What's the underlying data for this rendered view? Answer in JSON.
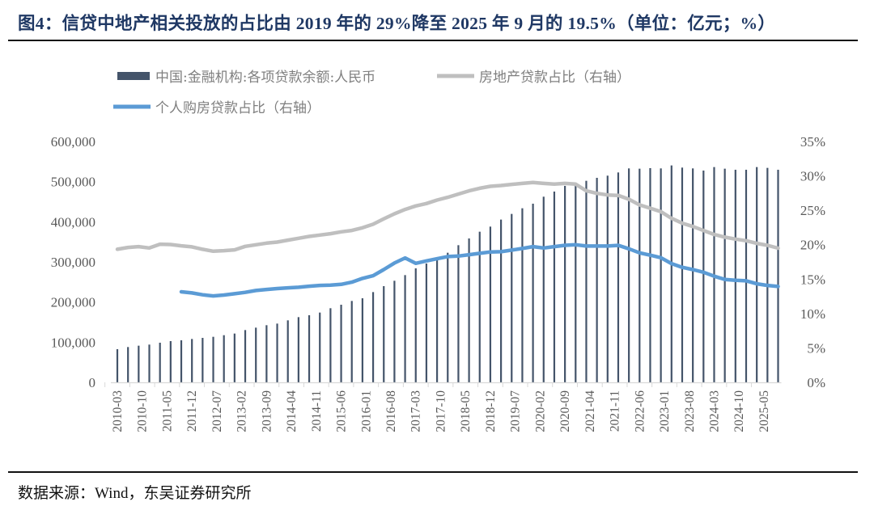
{
  "title": "图4：信贷中地产相关投放的占比由 2019 年的 29%降至 2025 年 9 月的 19.5%（单位：亿元；%）",
  "source": "数据来源：Wind，东吴证券研究所",
  "chart_data": {
    "type": "bar+line",
    "legend_placement": "top",
    "colors": {
      "bars": "#44546a",
      "real_estate_line": "#bfbfbf",
      "housing_line": "#5b9bd5"
    },
    "y_left": {
      "range": [
        0,
        600000
      ],
      "ticks": [
        "0",
        "100,000",
        "200,000",
        "300,000",
        "400,000",
        "500,000",
        "600,000"
      ]
    },
    "y_right": {
      "range": [
        0,
        35
      ],
      "ticks": [
        "0%",
        "5%",
        "10%",
        "15%",
        "20%",
        "25%",
        "30%",
        "35%"
      ]
    },
    "x_tick_labels": [
      "2010-03",
      "2010-10",
      "2011-05",
      "2011-12",
      "2012-07",
      "2013-02",
      "2013-09",
      "2014-04",
      "2014-11",
      "2015-06",
      "2016-01",
      "2016-08",
      "2017-03",
      "2017-10",
      "2018-05",
      "2018-12",
      "2019-07",
      "2020-02",
      "2020-09",
      "2021-04",
      "2021-11",
      "2022-06",
      "2023-01",
      "2023-08",
      "2024-03",
      "2024-10",
      "2025-05"
    ],
    "x": [
      "2010-03",
      "2010-06",
      "2010-09",
      "2010-12",
      "2011-03",
      "2011-06",
      "2011-09",
      "2011-12",
      "2012-03",
      "2012-06",
      "2012-09",
      "2012-12",
      "2013-03",
      "2013-06",
      "2013-09",
      "2013-12",
      "2014-03",
      "2014-06",
      "2014-09",
      "2014-12",
      "2015-03",
      "2015-06",
      "2015-09",
      "2015-12",
      "2016-03",
      "2016-06",
      "2016-09",
      "2016-12",
      "2017-03",
      "2017-06",
      "2017-09",
      "2017-12",
      "2018-03",
      "2018-06",
      "2018-09",
      "2018-12",
      "2019-03",
      "2019-06",
      "2019-09",
      "2019-12",
      "2020-03",
      "2020-06",
      "2020-09",
      "2020-12",
      "2021-03",
      "2021-06",
      "2021-09",
      "2021-12",
      "2022-03",
      "2022-06",
      "2022-09",
      "2022-12",
      "2023-03",
      "2023-06",
      "2023-09",
      "2023-12",
      "2024-03",
      "2024-06",
      "2024-09",
      "2024-12",
      "2025-03",
      "2025-06",
      "2025-09"
    ],
    "series": [
      {
        "name": "中国:金融机构:各项贷款余额:人民币",
        "type": "bar",
        "axis": "left",
        "values": [
          82600,
          87900,
          91300,
          94000,
          98700,
          102700,
          104700,
          108000,
          110700,
          113400,
          117400,
          121500,
          130200,
          136200,
          142300,
          146300,
          154400,
          162400,
          167100,
          173800,
          184600,
          193300,
          202700,
          209400,
          224800,
          239600,
          253000,
          267100,
          283900,
          296000,
          310000,
          322800,
          341600,
          358400,
          375200,
          387900,
          405400,
          419500,
          433600,
          445000,
          462400,
          475200,
          489300,
          497000,
          502000,
          509400,
          514800,
          522800,
          532900,
          532200,
          533600,
          532900,
          540300,
          534900,
          532900,
          527500,
          536200,
          532200,
          529500,
          529500,
          536200,
          534200,
          529500
        ]
      },
      {
        "name": "房地产贷款占比（右轴）",
        "type": "line",
        "axis": "right",
        "values": [
          19.33,
          19.6,
          19.72,
          19.52,
          20.07,
          20.03,
          19.84,
          19.68,
          19.33,
          19.05,
          19.13,
          19.25,
          19.76,
          19.99,
          20.23,
          20.38,
          20.66,
          20.93,
          21.2,
          21.4,
          21.6,
          21.87,
          22.07,
          22.46,
          22.97,
          23.75,
          24.49,
          25.12,
          25.63,
          25.98,
          26.49,
          26.88,
          27.35,
          27.82,
          28.2,
          28.48,
          28.6,
          28.76,
          28.9,
          29.05,
          28.9,
          28.8,
          28.9,
          28.8,
          27.82,
          27.46,
          27.23,
          27.15,
          26.6,
          25.78,
          25.3,
          24.8,
          23.83,
          23.12,
          22.65,
          22.07,
          21.48,
          21.09,
          20.81,
          20.58,
          20.19,
          19.91,
          19.5
        ]
      },
      {
        "name": "个人购房贷款占比（右轴）",
        "type": "line",
        "axis": "right",
        "values": [
          null,
          null,
          null,
          null,
          null,
          null,
          13.15,
          12.99,
          12.72,
          12.56,
          12.68,
          12.87,
          13.07,
          13.34,
          13.5,
          13.62,
          13.73,
          13.81,
          13.97,
          14.08,
          14.12,
          14.24,
          14.55,
          15.1,
          15.49,
          16.39,
          17.33,
          18.08,
          17.29,
          17.64,
          17.96,
          18.27,
          18.35,
          18.54,
          18.74,
          18.94,
          18.98,
          19.21,
          19.45,
          19.72,
          19.52,
          19.72,
          19.91,
          19.99,
          19.8,
          19.8,
          19.8,
          19.91,
          19.4,
          18.82,
          18.47,
          18.11,
          17.25,
          16.71,
          16.39,
          16.0,
          15.42,
          14.95,
          14.83,
          14.75,
          14.32,
          14.08,
          13.93
        ]
      }
    ]
  }
}
